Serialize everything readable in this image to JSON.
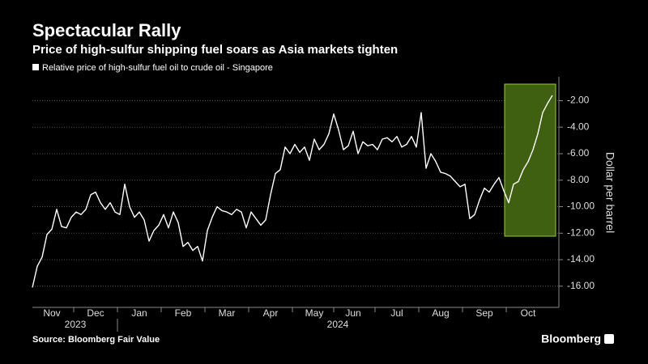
{
  "chart_data": {
    "type": "line",
    "title": "Spectacular Rally",
    "subtitle": "Price of high-sulfur shipping fuel soars as Asia markets tighten",
    "y_axis_label": "Dollar per barrel",
    "source": "Source: Bloomberg Fair Value",
    "brand": "Bloomberg",
    "x_group_labels": [
      "2023",
      "2024"
    ],
    "categories": [
      null,
      null,
      null,
      null,
      "Nov",
      null,
      null,
      null,
      null,
      null,
      null,
      null,
      null,
      "Dec",
      null,
      null,
      null,
      null,
      null,
      null,
      null,
      null,
      "Jan",
      null,
      null,
      null,
      null,
      null,
      null,
      null,
      null,
      "Feb",
      null,
      null,
      null,
      null,
      null,
      null,
      null,
      null,
      "Mar",
      null,
      null,
      null,
      null,
      null,
      null,
      null,
      null,
      "Apr",
      null,
      null,
      null,
      null,
      null,
      null,
      null,
      null,
      "May",
      null,
      null,
      null,
      null,
      null,
      null,
      null,
      "Jun",
      null,
      null,
      null,
      null,
      null,
      null,
      null,
      null,
      "Jul",
      null,
      null,
      null,
      null,
      null,
      null,
      null,
      null,
      "Aug",
      null,
      null,
      null,
      null,
      null,
      null,
      null,
      null,
      "Sep",
      null,
      null,
      null,
      null,
      null,
      null,
      null,
      null,
      "Oct",
      null,
      null,
      null,
      null,
      null
    ],
    "series": [
      {
        "name": "Relative price of high-sulfur fuel oil to crude oil - Singapore",
        "color": "#ffffff",
        "values": [
          -16.1,
          -14.5,
          -13.8,
          -12.1,
          -11.7,
          -10.2,
          -11.5,
          -11.6,
          -10.8,
          -10.4,
          -10.6,
          -10.2,
          -9.1,
          -8.9,
          -9.7,
          -10.2,
          -9.7,
          -10.4,
          -10.6,
          -8.3,
          -10.0,
          -10.8,
          -10.4,
          -11.0,
          -12.6,
          -11.8,
          -11.4,
          -10.6,
          -11.6,
          -10.4,
          -11.2,
          -13.0,
          -12.7,
          -13.3,
          -13.0,
          -14.1,
          -11.8,
          -10.8,
          -10.0,
          -10.3,
          -10.4,
          -10.6,
          -10.2,
          -10.4,
          -11.6,
          -10.4,
          -10.9,
          -11.4,
          -11.0,
          -9.1,
          -7.5,
          -7.2,
          -5.5,
          -6.0,
          -5.3,
          -5.9,
          -5.5,
          -6.5,
          -4.9,
          -5.7,
          -5.3,
          -4.5,
          -3.0,
          -4.2,
          -5.7,
          -5.4,
          -4.3,
          -6.0,
          -5.1,
          -5.4,
          -5.3,
          -5.7,
          -4.9,
          -4.8,
          -5.1,
          -4.7,
          -5.5,
          -5.3,
          -4.7,
          -5.5,
          -2.9,
          -7.1,
          -6.0,
          -6.6,
          -7.4,
          -7.5,
          -7.7,
          -8.1,
          -8.5,
          -8.3,
          -10.9,
          -10.6,
          -9.5,
          -8.6,
          -8.9,
          -8.3,
          -7.8,
          -8.8,
          -9.7,
          -8.3,
          -8.1,
          -7.2,
          -6.6,
          -5.7,
          -4.5,
          -2.9,
          -2.2,
          -1.6
        ]
      }
    ],
    "ylim": [
      -17.6,
      -0.2
    ],
    "yticks": [
      {
        "value": -16,
        "label": "-16.00"
      },
      {
        "value": -14,
        "label": "-14.00"
      },
      {
        "value": -12,
        "label": "-12.00"
      },
      {
        "value": -10,
        "label": "-10.00"
      },
      {
        "value": -8,
        "label": "-8.00"
      },
      {
        "value": -6,
        "label": "-6.00"
      },
      {
        "value": -4,
        "label": "-4.00"
      },
      {
        "value": -2,
        "label": "-2.00"
      }
    ],
    "grid": true
  }
}
